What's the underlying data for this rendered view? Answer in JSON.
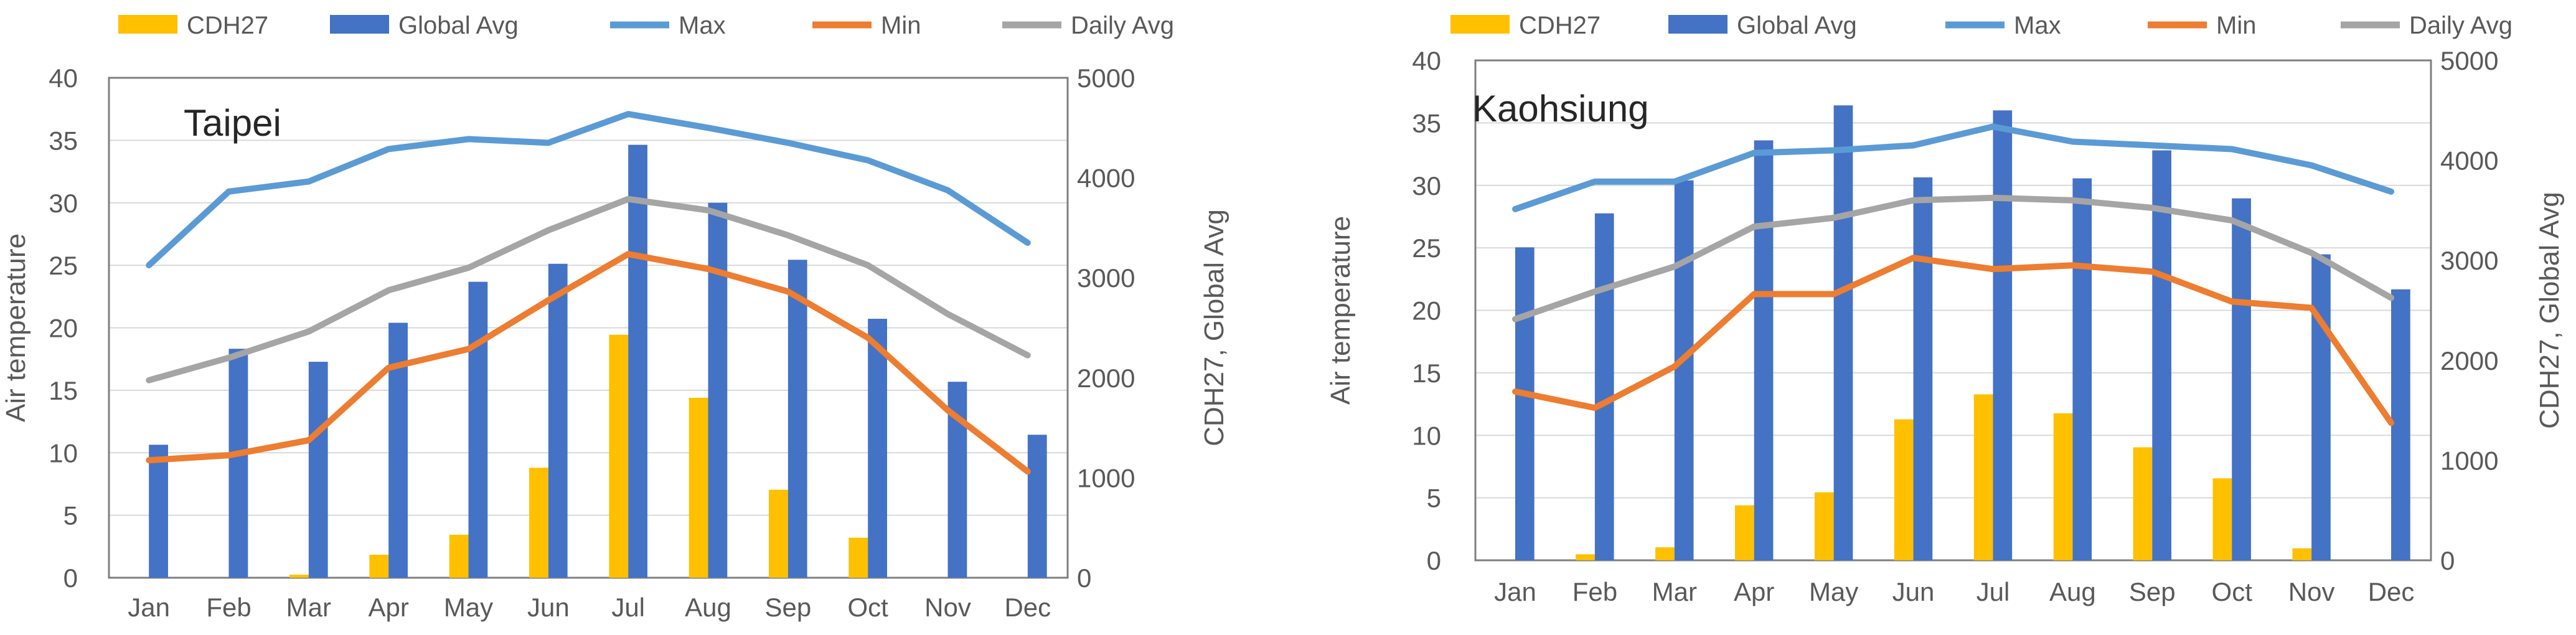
{
  "colors": {
    "cdh27": "#FFC000",
    "global_avg": "#4472C4",
    "max": "#5B9BD5",
    "min": "#ED7D31",
    "daily_avg": "#A5A5A5",
    "axis": "#7F7F7F",
    "grid": "#D9D9D9",
    "text": "#595959"
  },
  "legend": {
    "cdh27": "CDH27",
    "global_avg": "Global Avg",
    "max": "Max",
    "min": "Min",
    "daily_avg": "Daily Avg"
  },
  "chart_data": [
    {
      "type": "bar+line",
      "title": "Taipei",
      "categories": [
        "Jan",
        "Feb",
        "Mar",
        "Apr",
        "May",
        "Jun",
        "Jul",
        "Aug",
        "Sep",
        "Oct",
        "Nov",
        "Dec"
      ],
      "ylabel": "Air temperature",
      "y2label": "CDH27, Global Avg",
      "ylim": [
        0,
        40
      ],
      "yticks": [
        "0",
        "5",
        "10",
        "15",
        "20",
        "25",
        "30",
        "35",
        "40"
      ],
      "y2lim": [
        0,
        5000
      ],
      "y2ticks": [
        "0",
        "1000",
        "2000",
        "3000",
        "4000",
        "5000"
      ],
      "grid": true,
      "bar_series": [
        {
          "name": "CDH27",
          "axis": "right",
          "values": [
            0,
            0,
            30,
            230,
            430,
            1100,
            2430,
            1800,
            880,
            400,
            0,
            0
          ]
        },
        {
          "name": "Global Avg",
          "axis": "right",
          "values": [
            1330,
            2290,
            2160,
            2550,
            2960,
            3140,
            4330,
            3750,
            3180,
            2590,
            1960,
            1430
          ]
        }
      ],
      "line_series": [
        {
          "name": "Max",
          "axis": "left",
          "values": [
            25.0,
            30.9,
            31.7,
            34.3,
            35.1,
            34.8,
            37.1,
            36.0,
            34.8,
            33.4,
            31.0,
            26.8
          ]
        },
        {
          "name": "Min",
          "axis": "left",
          "values": [
            9.4,
            9.8,
            11.0,
            16.8,
            18.3,
            22.2,
            25.9,
            24.7,
            22.9,
            19.2,
            13.4,
            8.5
          ]
        },
        {
          "name": "Daily Avg",
          "axis": "left",
          "values": [
            15.8,
            17.6,
            19.7,
            23.0,
            24.8,
            27.8,
            30.3,
            29.4,
            27.4,
            25.0,
            21.1,
            17.8
          ]
        }
      ]
    },
    {
      "type": "bar+line",
      "title": "Kaohsiung",
      "categories": [
        "Jan",
        "Feb",
        "Mar",
        "Apr",
        "May",
        "Jun",
        "Jul",
        "Aug",
        "Sep",
        "Oct",
        "Nov",
        "Dec"
      ],
      "ylabel": "Air temperature",
      "y2label": "CDH27, Global Avg",
      "ylim": [
        0,
        40
      ],
      "yticks": [
        "0",
        "5",
        "10",
        "15",
        "20",
        "25",
        "30",
        "35",
        "40"
      ],
      "y2lim": [
        0,
        5000
      ],
      "y2ticks": [
        "0",
        "1000",
        "2000",
        "3000",
        "4000",
        "5000"
      ],
      "grid": true,
      "bar_series": [
        {
          "name": "CDH27",
          "axis": "right",
          "values": [
            0,
            60,
            130,
            550,
            680,
            1410,
            1660,
            1470,
            1130,
            820,
            120,
            0
          ]
        },
        {
          "name": "Global Avg",
          "axis": "right",
          "values": [
            3130,
            3470,
            3800,
            4200,
            4550,
            3830,
            4500,
            3820,
            4100,
            3620,
            3060,
            2710
          ]
        }
      ],
      "line_series": [
        {
          "name": "Max",
          "axis": "left",
          "values": [
            28.1,
            30.3,
            30.3,
            32.6,
            32.8,
            33.2,
            34.7,
            33.5,
            33.2,
            32.9,
            31.6,
            29.5
          ]
        },
        {
          "name": "Min",
          "axis": "left",
          "values": [
            13.5,
            12.2,
            15.5,
            21.3,
            21.3,
            24.2,
            23.3,
            23.6,
            23.1,
            20.7,
            20.2,
            11.0
          ]
        },
        {
          "name": "Daily Avg",
          "axis": "left",
          "values": [
            19.3,
            21.5,
            23.5,
            26.7,
            27.4,
            28.8,
            29.0,
            28.8,
            28.2,
            27.2,
            24.6,
            21.0
          ]
        }
      ]
    }
  ]
}
